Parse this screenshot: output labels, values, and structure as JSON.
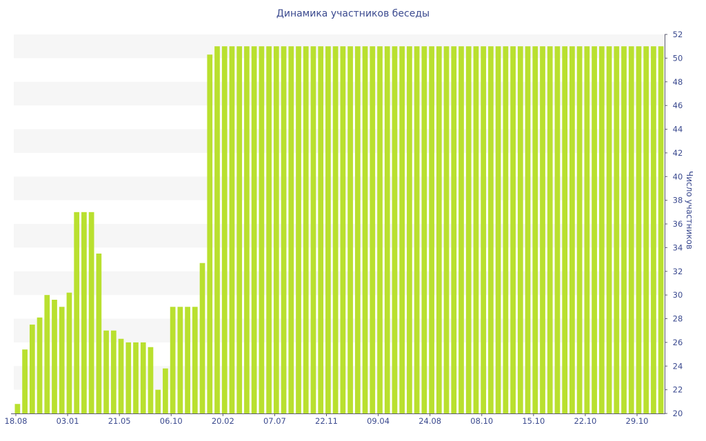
{
  "chart_data": {
    "type": "bar",
    "title": "Динамика участников беседы",
    "ylabel": "Число участников",
    "xlabel": "",
    "ylim": [
      20,
      52
    ],
    "yticks": [
      20,
      22,
      24,
      26,
      28,
      30,
      32,
      34,
      36,
      38,
      40,
      42,
      44,
      46,
      48,
      50,
      52
    ],
    "x_tick_labels": [
      "18.08",
      "03.01",
      "21.05",
      "06.10",
      "20.02",
      "07.07",
      "22.11",
      "09.04",
      "24.08",
      "08.10",
      "15.10",
      "22.10",
      "29.10"
    ],
    "y_axis_position": "right",
    "grid": "alternating horizontal bands",
    "colors": {
      "bar": "#b9e02f",
      "band": "#f6f6f6",
      "text": "#3b4a8f"
    },
    "values": [
      20.8,
      25.4,
      27.5,
      28.1,
      30.0,
      29.6,
      29.0,
      30.2,
      37.0,
      37.0,
      37.0,
      33.5,
      27.0,
      27.0,
      26.3,
      26.0,
      26.0,
      26.0,
      25.6,
      22.0,
      23.8,
      29.0,
      29.0,
      29.0,
      29.0,
      32.7,
      50.3,
      51,
      51,
      51,
      51,
      51,
      51,
      51,
      51,
      51,
      51,
      51,
      51,
      51,
      51,
      51,
      51,
      51,
      51,
      51,
      51,
      51,
      51,
      51,
      51,
      51,
      51,
      51,
      51,
      51,
      51,
      51,
      51,
      51,
      51,
      51,
      51,
      51,
      51,
      51,
      51,
      51,
      51,
      51,
      51,
      51,
      51,
      51,
      51,
      51,
      51,
      51,
      51,
      51,
      51,
      51,
      51,
      51,
      51,
      51,
      51,
      51
    ]
  }
}
